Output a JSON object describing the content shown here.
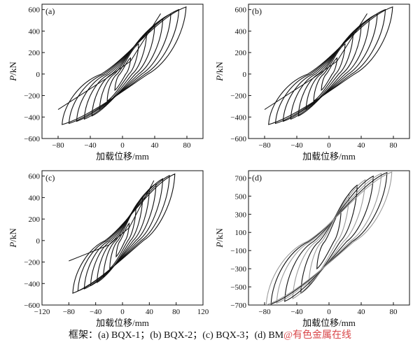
{
  "colors": {
    "curve_dark": "#111111",
    "curve_light": "#9a9a9a",
    "watermark": "#d9474a"
  },
  "caption": {
    "text": "框架：(a) BQX-1；(b) BQX-2；(c) BQX-3；(d) BM",
    "watermark": "@有色金属在线"
  },
  "chart_data": [
    {
      "id": "a",
      "type": "line",
      "panel_label": "(a)",
      "title": "BQX-1",
      "xlabel": "加载位移/mm",
      "ylabel_italic": "P",
      "ylabel_rest": "/kN",
      "xlim": [
        -100,
        100
      ],
      "ylim": [
        -600,
        650
      ],
      "xticks": [
        -80,
        -40,
        0,
        40,
        80
      ],
      "yticks": [
        -600,
        -400,
        -200,
        0,
        200,
        400,
        600
      ],
      "series": [
        {
          "name": "hysteresis loops",
          "style": "dark",
          "peaks": [
            {
              "d": 10,
              "pos": 150,
              "neg": -150
            },
            {
              "d": 20,
              "pos": 280,
              "neg": -250
            },
            {
              "d": 30,
              "pos": 380,
              "neg": -330
            },
            {
              "d": 40,
              "pos": 450,
              "neg": -390
            },
            {
              "d": 50,
              "pos": 510,
              "neg": -420
            },
            {
              "d": 60,
              "pos": 560,
              "neg": -440
            },
            {
              "d": 70,
              "pos": 600,
              "neg": -460
            },
            {
              "d": 79,
              "pos": 625,
              "neg": -470
            }
          ],
          "final_unload_negative": [
            -80,
            -330
          ]
        }
      ]
    },
    {
      "id": "b",
      "type": "line",
      "panel_label": "(b)",
      "title": "BQX-2",
      "xlabel": "加载位移/mm",
      "ylabel_italic": "P",
      "ylabel_rest": "/kN",
      "xlim": [
        -100,
        100
      ],
      "ylim": [
        -600,
        650
      ],
      "xticks": [
        -80,
        -40,
        0,
        40,
        80
      ],
      "yticks": [
        -600,
        -400,
        -200,
        0,
        200,
        400,
        600
      ],
      "series": [
        {
          "name": "hysteresis loops",
          "style": "dark",
          "peaks": [
            {
              "d": 10,
              "pos": 150,
              "neg": -150
            },
            {
              "d": 20,
              "pos": 280,
              "neg": -250
            },
            {
              "d": 30,
              "pos": 380,
              "neg": -330
            },
            {
              "d": 40,
              "pos": 450,
              "neg": -390
            },
            {
              "d": 50,
              "pos": 510,
              "neg": -420
            },
            {
              "d": 60,
              "pos": 560,
              "neg": -440
            },
            {
              "d": 70,
              "pos": 600,
              "neg": -460
            },
            {
              "d": 79,
              "pos": 625,
              "neg": -470
            }
          ],
          "final_unload_negative": [
            -80,
            -330
          ]
        }
      ]
    },
    {
      "id": "c",
      "type": "line",
      "panel_label": "(c)",
      "title": "BQX-3",
      "xlabel": "加载位移/mm",
      "ylabel_italic": "P",
      "ylabel_rest": "/kN",
      "xlim": [
        -120,
        120
      ],
      "ylim": [
        -600,
        650
      ],
      "xticks": [
        -120,
        -80,
        -40,
        0,
        40,
        80,
        120
      ],
      "yticks": [
        -600,
        -400,
        -200,
        0,
        200,
        400,
        600
      ],
      "series": [
        {
          "name": "hysteresis loops",
          "style": "dark",
          "peaks": [
            {
              "d": 10,
              "pos": 160,
              "neg": -150
            },
            {
              "d": 20,
              "pos": 300,
              "neg": -260
            },
            {
              "d": 30,
              "pos": 400,
              "neg": -340
            },
            {
              "d": 40,
              "pos": 470,
              "neg": -390
            },
            {
              "d": 50,
              "pos": 530,
              "neg": -420
            },
            {
              "d": 60,
              "pos": 575,
              "neg": -450
            },
            {
              "d": 70,
              "pos": 605,
              "neg": -470
            },
            {
              "d": 78,
              "pos": 620,
              "neg": -490
            }
          ],
          "final_unload_negative": [
            -80,
            -190
          ]
        }
      ]
    },
    {
      "id": "d",
      "type": "line",
      "panel_label": "(d)",
      "title": "BM",
      "xlabel": "加载位移/mm",
      "ylabel_italic": "P",
      "ylabel_rest": "/kN",
      "xlim": [
        -100,
        100
      ],
      "ylim": [
        -700,
        780
      ],
      "xticks": [
        -80,
        -40,
        0,
        40,
        80
      ],
      "yticks": [
        -700,
        -500,
        -300,
        -100,
        100,
        300,
        500,
        700
      ],
      "ytick_labels": [
        "−700",
        "−500",
        "−300",
        "−100",
        "100",
        "300",
        "500",
        "700"
      ],
      "series": [
        {
          "name": "hysteresis loops",
          "style": "mixed",
          "peaks": [
            {
              "d": 15,
              "pos": 350,
              "neg": -300
            },
            {
              "d": 25,
              "pos": 520,
              "neg": -470
            },
            {
              "d": 35,
              "pos": 620,
              "neg": -570
            },
            {
              "d": 45,
              "pos": 680,
              "neg": -630
            },
            {
              "d": 55,
              "pos": 720,
              "neg": -660
            },
            {
              "d": 65,
              "pos": 750,
              "neg": -680
            },
            {
              "d": 72,
              "pos": 760,
              "neg": -690
            },
            {
              "d": 78,
              "pos": 765,
              "neg": -700
            }
          ]
        }
      ]
    }
  ]
}
